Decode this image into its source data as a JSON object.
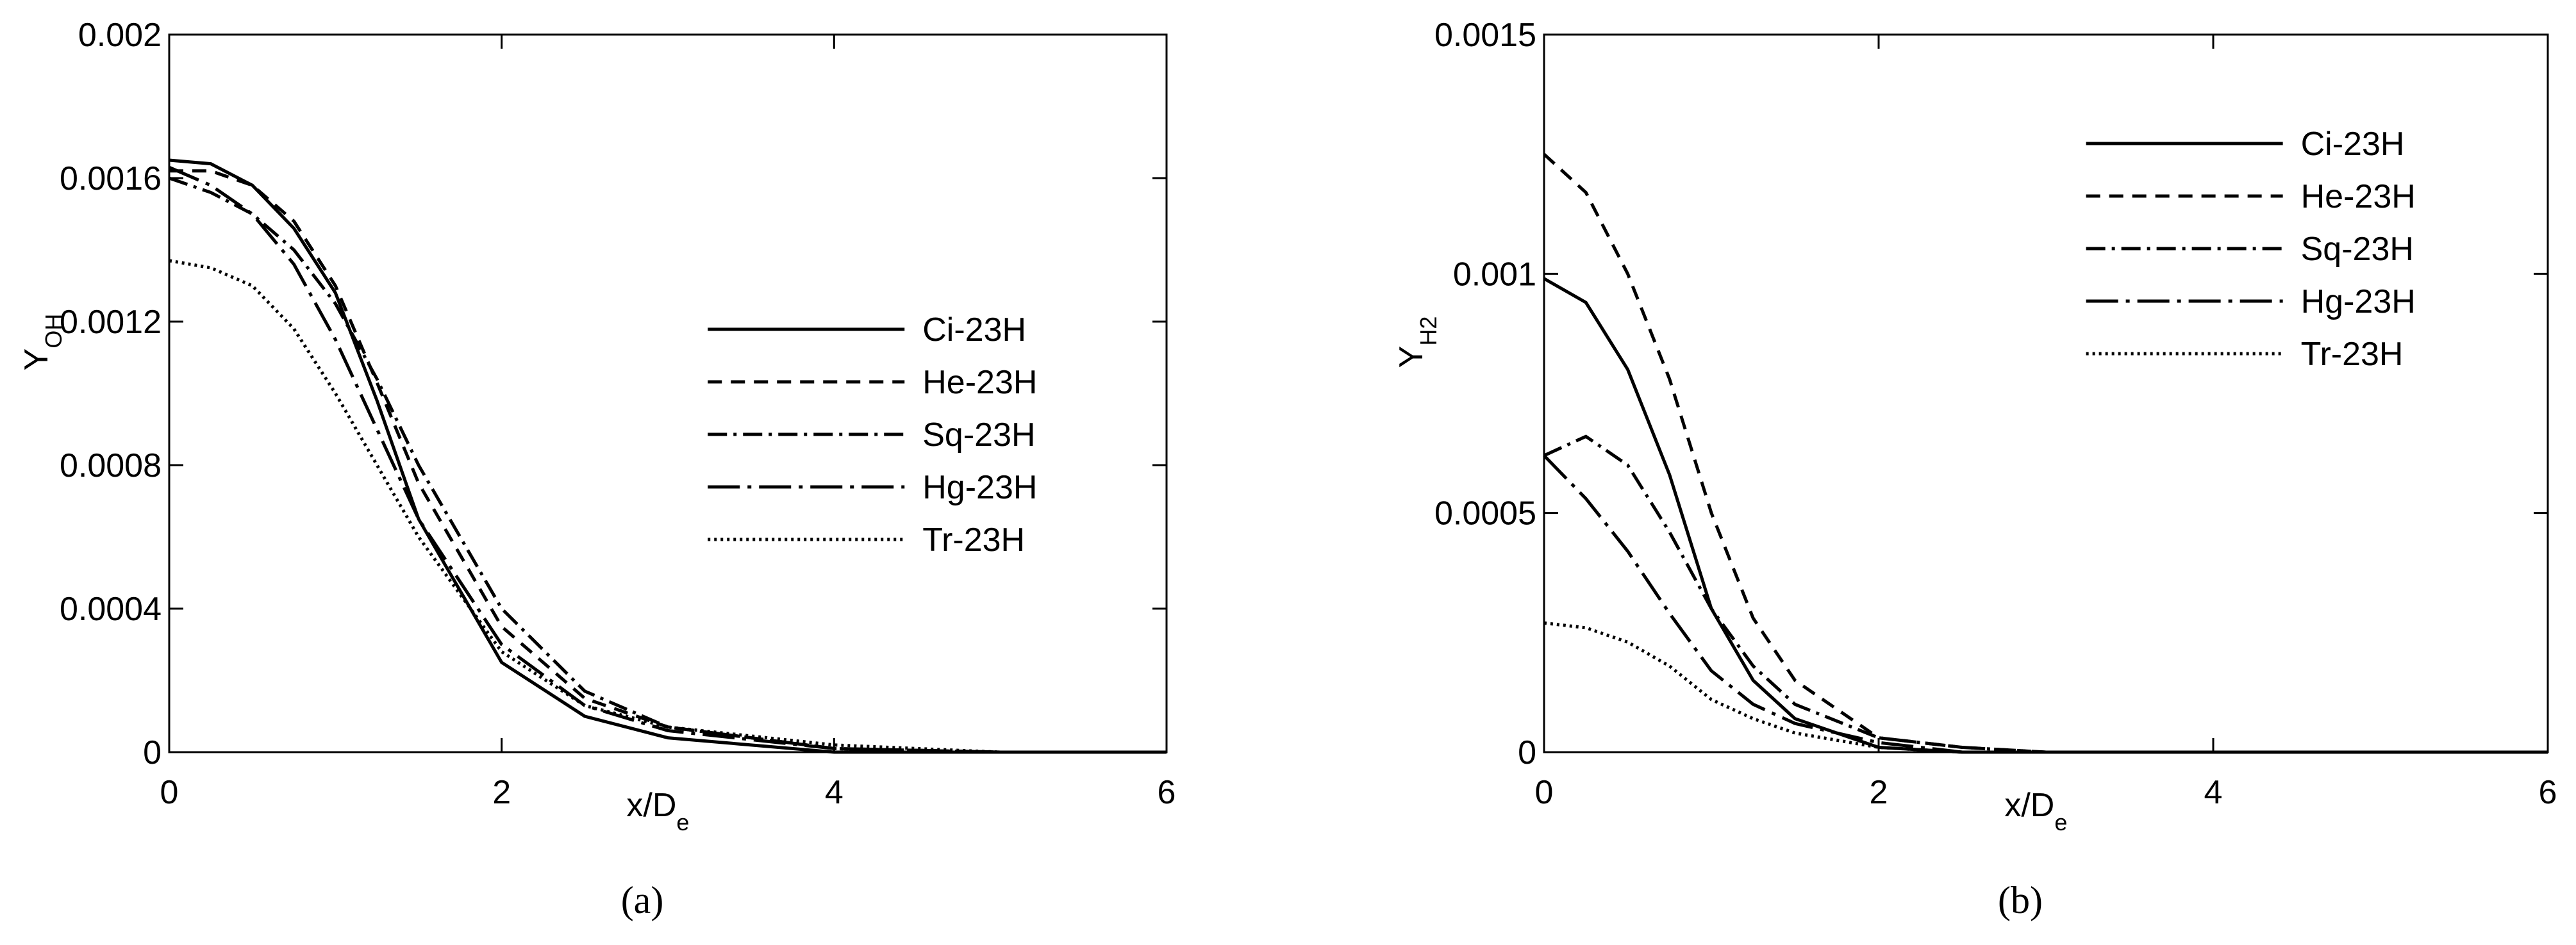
{
  "chart_data": [
    {
      "type": "line",
      "caption": "(a)",
      "x_label": "x/D",
      "x_label_sub": "e",
      "y_label": "Y",
      "y_label_sub": "OH",
      "xlim": [
        0,
        6
      ],
      "xticks": [
        0,
        2,
        4,
        6
      ],
      "ylim": [
        0,
        0.002
      ],
      "yticks": [
        0,
        0.0004,
        0.0008,
        0.0012,
        0.0016,
        0.002
      ],
      "legend": "center right",
      "x": [
        0,
        0.25,
        0.5,
        0.75,
        1,
        1.25,
        1.5,
        2,
        2.5,
        3,
        4,
        5,
        6
      ],
      "series": [
        {
          "name": "Ci-23H",
          "color": "#000000",
          "dash": "solid",
          "values": [
            0.00165,
            0.00164,
            0.00158,
            0.00146,
            0.00128,
            0.00098,
            0.00065,
            0.00025,
            0.0001,
            4e-05,
            0,
            0,
            0
          ]
        },
        {
          "name": "He-23H",
          "color": "#000000",
          "dash": "dashed",
          "values": [
            0.00162,
            0.00162,
            0.00158,
            0.00148,
            0.0013,
            0.00103,
            0.00075,
            0.00035,
            0.00015,
            7e-05,
            1e-05,
            0,
            0
          ]
        },
        {
          "name": "Sq-23H",
          "color": "#000000",
          "dash": "dashdot",
          "values": [
            0.0016,
            0.00156,
            0.0015,
            0.0014,
            0.00125,
            0.00104,
            0.0008,
            0.0004,
            0.00017,
            7e-05,
            1e-05,
            0,
            0
          ]
        },
        {
          "name": "Hg-23H",
          "color": "#000000",
          "dash": "longdashdot",
          "values": [
            0.00163,
            0.00158,
            0.0015,
            0.00136,
            0.00115,
            0.0009,
            0.00065,
            0.0003,
            0.00013,
            6e-05,
            1e-05,
            0,
            0
          ]
        },
        {
          "name": "Tr-23H",
          "color": "#000000",
          "dash": "dotted",
          "values": [
            0.00137,
            0.00135,
            0.0013,
            0.00118,
            0.001,
            0.0008,
            0.0006,
            0.00028,
            0.00013,
            7e-05,
            2e-05,
            0,
            0
          ]
        }
      ]
    },
    {
      "type": "line",
      "caption": "(b)",
      "x_label": "x/D",
      "x_label_sub": "e",
      "y_label": "Y",
      "y_label_sub": "H2",
      "xlim": [
        0,
        6
      ],
      "xticks": [
        0,
        2,
        4,
        6
      ],
      "ylim": [
        0,
        0.0015
      ],
      "yticks": [
        0,
        0.0005,
        0.001,
        0.0015
      ],
      "legend": "upper right",
      "x": [
        0,
        0.25,
        0.5,
        0.75,
        1,
        1.25,
        1.5,
        2,
        2.5,
        3,
        4,
        5,
        6
      ],
      "series": [
        {
          "name": "Ci-23H",
          "color": "#000000",
          "dash": "solid",
          "values": [
            0.00099,
            0.00094,
            0.0008,
            0.00058,
            0.0003,
            0.00015,
            7e-05,
            1e-05,
            0,
            0,
            0,
            0,
            0
          ]
        },
        {
          "name": "He-23H",
          "color": "#000000",
          "dash": "dashed",
          "values": [
            0.00125,
            0.00117,
            0.001,
            0.00078,
            0.0005,
            0.00028,
            0.00015,
            3e-05,
            1e-05,
            0,
            0,
            0,
            0
          ]
        },
        {
          "name": "Sq-23H",
          "color": "#000000",
          "dash": "dashdot",
          "values": [
            0.00062,
            0.00066,
            0.0006,
            0.00046,
            0.0003,
            0.00018,
            0.0001,
            3e-05,
            1e-05,
            0,
            0,
            0,
            0
          ]
        },
        {
          "name": "Hg-23H",
          "color": "#000000",
          "dash": "longdashdot",
          "values": [
            0.00062,
            0.00053,
            0.00042,
            0.00029,
            0.00017,
            0.0001,
            6e-05,
            2e-05,
            0,
            0,
            0,
            0,
            0
          ]
        },
        {
          "name": "Tr-23H",
          "color": "#000000",
          "dash": "dotted",
          "values": [
            0.00027,
            0.00026,
            0.00023,
            0.00018,
            0.00011,
            7e-05,
            4e-05,
            1e-05,
            0,
            0,
            0,
            0,
            0
          ]
        }
      ]
    }
  ]
}
